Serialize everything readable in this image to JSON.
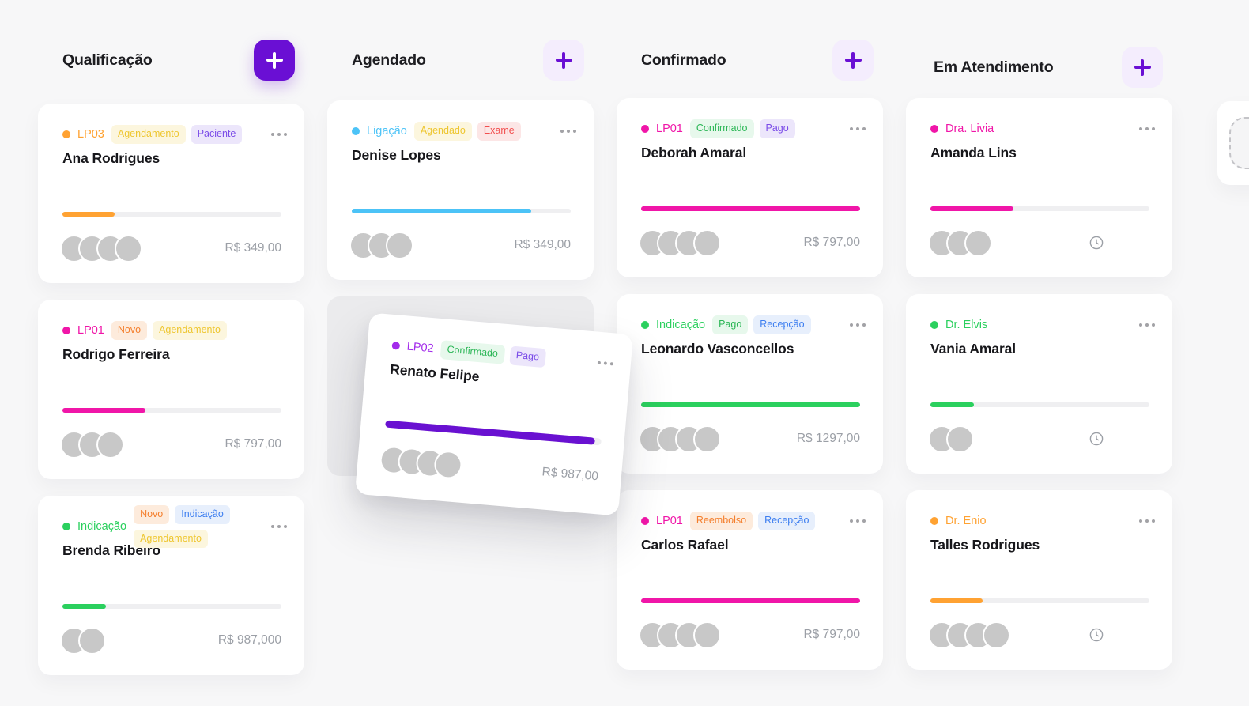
{
  "board": {
    "background": "#F7F7F8",
    "accents": {
      "orange": "#FFA232",
      "pink": "#F016A8",
      "blue": "#4CC3F7",
      "green": "#2BD05E",
      "purple": "#A32BEB",
      "violet": "#6911D1"
    },
    "tag_styles": {
      "yellow": {
        "bg": "#FCF6DE",
        "fg": "#EEC62F"
      },
      "purple": {
        "bg": "#ECE6FB",
        "fg": "#7A4BE8"
      },
      "orange": {
        "bg": "#FDEBDC",
        "fg": "#F47E2C"
      },
      "blue": {
        "bg": "#E7EFFC",
        "fg": "#3D7EF0"
      },
      "red": {
        "bg": "#FCE6E6",
        "fg": "#F24E4E"
      },
      "green": {
        "bg": "#E7F8EC",
        "fg": "#2BB656"
      }
    },
    "columns": [
      {
        "id": "qualificacao",
        "title": "Qualificação",
        "add_button_style": "filled",
        "cards": [
          {
            "kind": "card",
            "accent": "orange",
            "label": "LP03",
            "tags": [
              [
                "Agendamento",
                "yellow"
              ],
              [
                "Paciente",
                "purple"
              ]
            ],
            "has_menu": true,
            "name": "Ana Rodrigues",
            "progress_color": "orange",
            "progress_percent": 24,
            "avatar_count": 4,
            "price": "R$ 349,00"
          },
          {
            "kind": "card",
            "accent": "pink",
            "label": "LP01",
            "tags": [
              [
                "Novo",
                "orange"
              ],
              [
                "Agendamento",
                "yellow"
              ]
            ],
            "has_menu": false,
            "name": "Rodrigo Ferreira",
            "progress_color": "pink",
            "progress_percent": 38,
            "avatar_count": 3,
            "price": "R$ 797,00"
          },
          {
            "kind": "card",
            "accent": "green",
            "label": "Indicação",
            "tags": [
              [
                "Novo",
                "orange"
              ],
              [
                "Indicação",
                "blue"
              ],
              [
                "Agendamento",
                "yellow"
              ]
            ],
            "tags_wrap": true,
            "has_menu": true,
            "name": "Brenda Ribeiro",
            "progress_color": "green",
            "progress_percent": 20,
            "avatar_count": 2,
            "price": "R$ 987,000"
          }
        ]
      },
      {
        "id": "agendado",
        "title": "Agendado",
        "add_button_style": "soft",
        "cards": [
          {
            "kind": "card",
            "accent": "blue",
            "label": "Ligação",
            "tags": [
              [
                "Agendado",
                "yellow"
              ],
              [
                "Exame",
                "red"
              ]
            ],
            "has_menu": true,
            "name": "Denise Lopes",
            "progress_color": "blue",
            "progress_percent": 82,
            "avatar_count": 3,
            "price": "R$ 349,00"
          },
          {
            "kind": "placeholder"
          }
        ]
      },
      {
        "id": "confirmado",
        "title": "Confirmado",
        "add_button_style": "soft",
        "cards": [
          {
            "kind": "card",
            "accent": "pink",
            "label": "LP01",
            "tags": [
              [
                "Confirmado",
                "green"
              ],
              [
                "Pago",
                "purple"
              ]
            ],
            "has_menu": true,
            "name": "Deborah Amaral",
            "progress_color": "pink",
            "progress_percent": 100,
            "avatar_count": 4,
            "price": "R$ 797,00"
          },
          {
            "kind": "card",
            "accent": "green",
            "label": "Indicação",
            "tags": [
              [
                "Pago",
                "green"
              ],
              [
                "Recepção",
                "blue"
              ]
            ],
            "has_menu": true,
            "name": "Leonardo Vasconcellos",
            "progress_color": "green",
            "progress_percent": 100,
            "avatar_count": 4,
            "price": "R$ 1297,00"
          },
          {
            "kind": "card",
            "accent": "pink",
            "label": "LP01",
            "tags": [
              [
                "Reembolso",
                "orange"
              ],
              [
                "Recepção",
                "blue"
              ]
            ],
            "has_menu": true,
            "name": "Carlos Rafael",
            "progress_color": "pink",
            "progress_percent": 100,
            "avatar_count": 4,
            "price": "R$ 797,00"
          }
        ]
      },
      {
        "id": "em-atendimento",
        "title": "Em Atendimento",
        "add_button_style": "soft",
        "cards": [
          {
            "kind": "card",
            "accent": "pink",
            "label": "Dra. Livia",
            "tags": [],
            "has_menu": true,
            "name": "Amanda Lins",
            "progress_color": "pink",
            "progress_percent": 38,
            "avatar_count": 3,
            "footer_icon": "clock"
          },
          {
            "kind": "card",
            "accent": "green",
            "label": "Dr. Elvis",
            "tags": [],
            "has_menu": true,
            "name": "Vania Amaral",
            "progress_color": "green",
            "progress_percent": 20,
            "avatar_count": 2,
            "footer_icon": "clock"
          },
          {
            "kind": "card",
            "accent": "orange",
            "label": "Dr. Enio",
            "tags": [],
            "has_menu": true,
            "name": "Talles Rodrigues",
            "progress_color": "orange",
            "progress_percent": 24,
            "avatar_count": 4,
            "footer_icon": "clock"
          }
        ]
      }
    ],
    "dragging_card": {
      "kind": "card",
      "accent": "purple",
      "label": "LP02",
      "tags": [
        [
          "Confirmado",
          "green"
        ],
        [
          "Pago",
          "purple"
        ]
      ],
      "has_menu": true,
      "name": "Renato Felipe",
      "progress_color": "violet",
      "progress_percent": 97,
      "avatar_count": 4,
      "price": "R$ 987,00",
      "over_column": "Agendado"
    },
    "peek_column": {
      "empty_slot": true
    }
  }
}
